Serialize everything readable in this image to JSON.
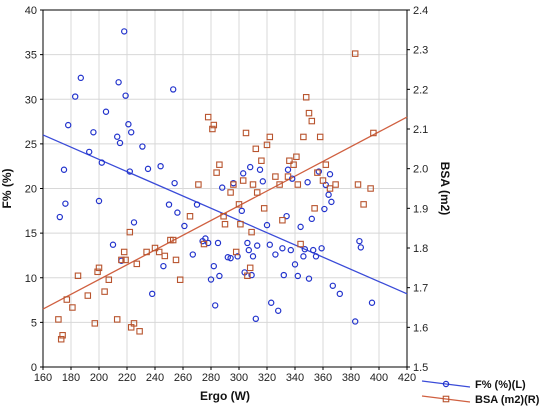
{
  "chart_data": {
    "type": "scatter",
    "xlabel": "Ergo (W)",
    "ylabel_left": "F% (%)",
    "ylabel_right": "BSA (m2)",
    "x_ticks": [
      "160",
      "180",
      "200",
      "220",
      "240",
      "260",
      "280",
      "300",
      "320",
      "340",
      "360",
      "380",
      "400",
      "420"
    ],
    "y_left_ticks": [
      "0",
      "5",
      "10",
      "15",
      "20",
      "25",
      "30",
      "35",
      "40"
    ],
    "y_right_ticks": [
      "1.5",
      "1.6",
      "1.7",
      "1.8",
      "1.9",
      "2.0",
      "2.1",
      "2.2",
      "2.3",
      "2.4"
    ],
    "xlim": [
      160,
      420
    ],
    "ylim_left": [
      0,
      40
    ],
    "ylim_right": [
      1.5,
      2.4
    ],
    "grid": true,
    "legend_position": "bottom-right",
    "series": [
      {
        "name": "F% (%)(L)",
        "axis": "left",
        "marker": "circle",
        "color": "#2233cc",
        "points": [
          [
            172,
            16.8
          ],
          [
            175,
            22.1
          ],
          [
            176,
            18.3
          ],
          [
            178,
            27.1
          ],
          [
            183,
            30.3
          ],
          [
            187,
            32.4
          ],
          [
            193,
            24.1
          ],
          [
            196,
            26.3
          ],
          [
            200,
            18.6
          ],
          [
            202,
            22.9
          ],
          [
            205,
            28.6
          ],
          [
            210,
            13.7
          ],
          [
            213,
            25.8
          ],
          [
            214,
            31.9
          ],
          [
            215,
            25.1
          ],
          [
            216,
            11.9
          ],
          [
            218,
            37.6
          ],
          [
            219,
            30.4
          ],
          [
            221,
            27.2
          ],
          [
            222,
            21.9
          ],
          [
            223,
            26.3
          ],
          [
            225,
            16.2
          ],
          [
            231,
            24.7
          ],
          [
            235,
            22.2
          ],
          [
            238,
            8.2
          ],
          [
            244,
            22.5
          ],
          [
            246,
            11.3
          ],
          [
            250,
            18.2
          ],
          [
            253,
            31.1
          ],
          [
            254,
            20.6
          ],
          [
            256,
            17.3
          ],
          [
            261,
            15.8
          ],
          [
            267,
            12.6
          ],
          [
            270,
            18.2
          ],
          [
            274,
            14.1
          ],
          [
            276,
            14.4
          ],
          [
            278,
            13.9
          ],
          [
            280,
            9.8
          ],
          [
            282,
            11.3
          ],
          [
            283,
            6.9
          ],
          [
            285,
            13.9
          ],
          [
            286,
            10.2
          ],
          [
            288,
            20.1
          ],
          [
            292,
            12.3
          ],
          [
            294,
            12.2
          ],
          [
            296,
            20.6
          ],
          [
            299,
            12.4
          ],
          [
            302,
            17.5
          ],
          [
            303,
            21.7
          ],
          [
            304,
            10.6
          ],
          [
            306,
            13.9
          ],
          [
            307,
            13.1
          ],
          [
            308,
            22.4
          ],
          [
            309,
            10.3
          ],
          [
            310,
            12.4
          ],
          [
            312,
            5.4
          ],
          [
            313,
            13.6
          ],
          [
            315,
            22.1
          ],
          [
            317,
            20.8
          ],
          [
            320,
            15.9
          ],
          [
            322,
            13.7
          ],
          [
            323,
            7.2
          ],
          [
            326,
            12.6
          ],
          [
            328,
            6.3
          ],
          [
            331,
            13.3
          ],
          [
            332,
            10.3
          ],
          [
            334,
            16.9
          ],
          [
            335,
            22.1
          ],
          [
            337,
            13.1
          ],
          [
            338,
            21.1
          ],
          [
            340,
            11.5
          ],
          [
            342,
            10.2
          ],
          [
            344,
            15.7
          ],
          [
            346,
            12.4
          ],
          [
            347,
            13.2
          ],
          [
            349,
            20.7
          ],
          [
            350,
            9.9
          ],
          [
            352,
            16.6
          ],
          [
            353,
            13.1
          ],
          [
            355,
            12.4
          ],
          [
            357,
            21.9
          ],
          [
            359,
            13.3
          ],
          [
            361,
            17.7
          ],
          [
            362,
            20.4
          ],
          [
            364,
            19.3
          ],
          [
            365,
            21.6
          ],
          [
            366,
            18.5
          ],
          [
            367,
            9.1
          ],
          [
            372,
            8.2
          ],
          [
            383,
            5.1
          ],
          [
            386,
            14.1
          ],
          [
            387,
            13.4
          ],
          [
            395,
            7.2
          ]
        ]
      },
      {
        "name": "BSA (m2)(R)",
        "axis": "right",
        "marker": "square",
        "color": "#b8542e",
        "points": [
          [
            171,
            1.62
          ],
          [
            173,
            1.57
          ],
          [
            174,
            1.58
          ],
          [
            177,
            1.67
          ],
          [
            181,
            1.65
          ],
          [
            185,
            1.73
          ],
          [
            192,
            1.68
          ],
          [
            197,
            1.61
          ],
          [
            199,
            1.74
          ],
          [
            200,
            1.75
          ],
          [
            204,
            1.69
          ],
          [
            207,
            1.72
          ],
          [
            213,
            1.62
          ],
          [
            216,
            1.77
          ],
          [
            218,
            1.79
          ],
          [
            219,
            1.77
          ],
          [
            222,
            1.84
          ],
          [
            223,
            1.6
          ],
          [
            225,
            1.61
          ],
          [
            227,
            1.76
          ],
          [
            229,
            1.59
          ],
          [
            234,
            1.79
          ],
          [
            240,
            1.8
          ],
          [
            243,
            1.79
          ],
          [
            247,
            1.78
          ],
          [
            251,
            1.82
          ],
          [
            253,
            1.82
          ],
          [
            255,
            1.77
          ],
          [
            258,
            1.72
          ],
          [
            265,
            1.88
          ],
          [
            271,
            1.96
          ],
          [
            275,
            1.81
          ],
          [
            278,
            2.13
          ],
          [
            281,
            2.1
          ],
          [
            282,
            2.11
          ],
          [
            284,
            1.99
          ],
          [
            286,
            2.01
          ],
          [
            289,
            1.88
          ],
          [
            290,
            1.86
          ],
          [
            294,
            1.94
          ],
          [
            296,
            1.96
          ],
          [
            298,
            1.79
          ],
          [
            300,
            1.91
          ],
          [
            301,
            1.86
          ],
          [
            303,
            1.97
          ],
          [
            305,
            2.09
          ],
          [
            306,
            1.73
          ],
          [
            308,
            1.75
          ],
          [
            309,
            1.84
          ],
          [
            310,
            1.96
          ],
          [
            312,
            2.05
          ],
          [
            313,
            1.94
          ],
          [
            316,
            2.02
          ],
          [
            318,
            1.9
          ],
          [
            320,
            2.06
          ],
          [
            322,
            2.08
          ],
          [
            326,
            1.98
          ],
          [
            329,
            1.96
          ],
          [
            331,
            1.87
          ],
          [
            335,
            1.98
          ],
          [
            336,
            2.02
          ],
          [
            339,
            2.01
          ],
          [
            341,
            2.03
          ],
          [
            342,
            1.96
          ],
          [
            344,
            1.81
          ],
          [
            346,
            2.08
          ],
          [
            348,
            2.18
          ],
          [
            350,
            2.14
          ],
          [
            352,
            2.12
          ],
          [
            354,
            1.9
          ],
          [
            356,
            1.99
          ],
          [
            358,
            2.08
          ],
          [
            360,
            1.97
          ],
          [
            362,
            2.01
          ],
          [
            365,
            1.95
          ],
          [
            369,
            1.96
          ],
          [
            383,
            2.29
          ],
          [
            385,
            1.96
          ],
          [
            389,
            1.91
          ],
          [
            394,
            1.95
          ],
          [
            396,
            2.09
          ]
        ]
      }
    ],
    "fit_lines": [
      {
        "series": "F% (%)(L)",
        "axis": "left",
        "color": "#3a4bd8",
        "x": [
          160,
          420
        ],
        "y": [
          26.0,
          8.2
        ]
      },
      {
        "series": "BSA (m2)(R)",
        "axis": "right",
        "color": "#d06040",
        "x": [
          160,
          420
        ],
        "y": [
          1.646,
          2.13
        ]
      }
    ]
  }
}
